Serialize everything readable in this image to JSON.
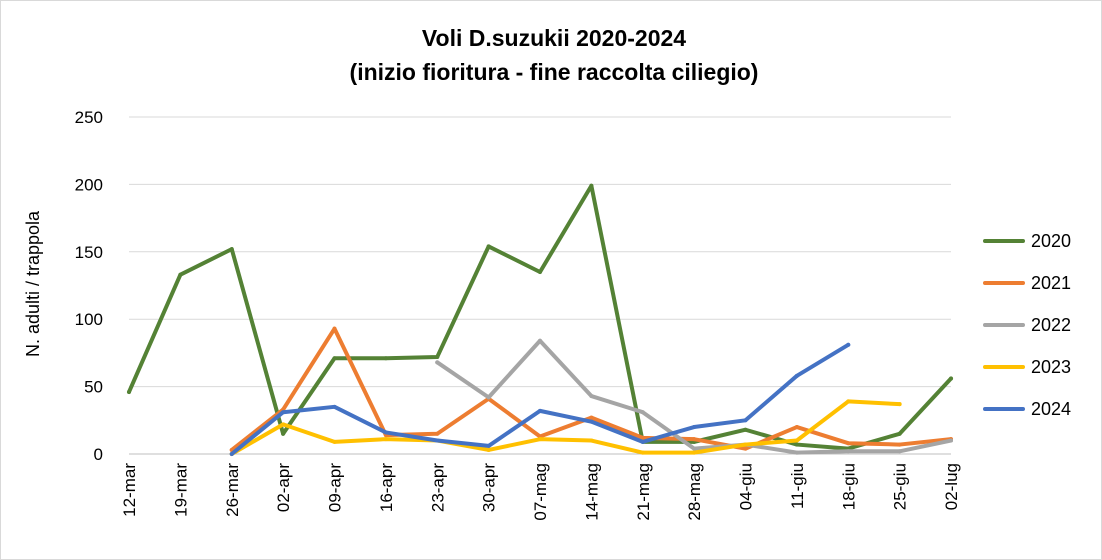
{
  "chart_data": {
    "type": "line",
    "title": "Voli D.suzukii 2020-2024",
    "subtitle": "(inizio fioritura - fine raccolta ciliegio)",
    "xlabel": "",
    "ylabel": "N. adulti / trappola",
    "ylim": [
      0,
      250
    ],
    "yticks": [
      0,
      50,
      100,
      150,
      200,
      250
    ],
    "grid": true,
    "legend_position": "right",
    "categories": [
      "12-mar",
      "19-mar",
      "26-mar",
      "02-apr",
      "09-apr",
      "16-apr",
      "23-apr",
      "30-apr",
      "07-mag",
      "14-mag",
      "21-mag",
      "28-mag",
      "04-giu",
      "11-giu",
      "18-giu",
      "25-giu",
      "02-lug"
    ],
    "series": [
      {
        "name": "2020",
        "color": "#548235",
        "values": [
          46,
          133,
          152,
          15,
          71,
          71,
          72,
          154,
          135,
          199,
          9,
          9,
          18,
          7,
          4,
          15,
          56
        ]
      },
      {
        "name": "2021",
        "color": "#ed7d31",
        "values": [
          null,
          null,
          3,
          33,
          93,
          14,
          15,
          41,
          13,
          27,
          12,
          11,
          4,
          20,
          8,
          7,
          11
        ]
      },
      {
        "name": "2022",
        "color": "#a5a5a5",
        "values": [
          null,
          null,
          null,
          null,
          null,
          null,
          68,
          42,
          84,
          43,
          31,
          4,
          7,
          1,
          2,
          2,
          10
        ]
      },
      {
        "name": "2023",
        "color": "#ffc000",
        "values": [
          null,
          null,
          0,
          22,
          9,
          11,
          10,
          3,
          11,
          10,
          1,
          1,
          7,
          10,
          39,
          37,
          null
        ]
      },
      {
        "name": "2024",
        "color": "#4472c4",
        "values": [
          null,
          null,
          0,
          31,
          35,
          16,
          10,
          6,
          32,
          24,
          9,
          20,
          25,
          58,
          81,
          null,
          null
        ]
      }
    ]
  }
}
